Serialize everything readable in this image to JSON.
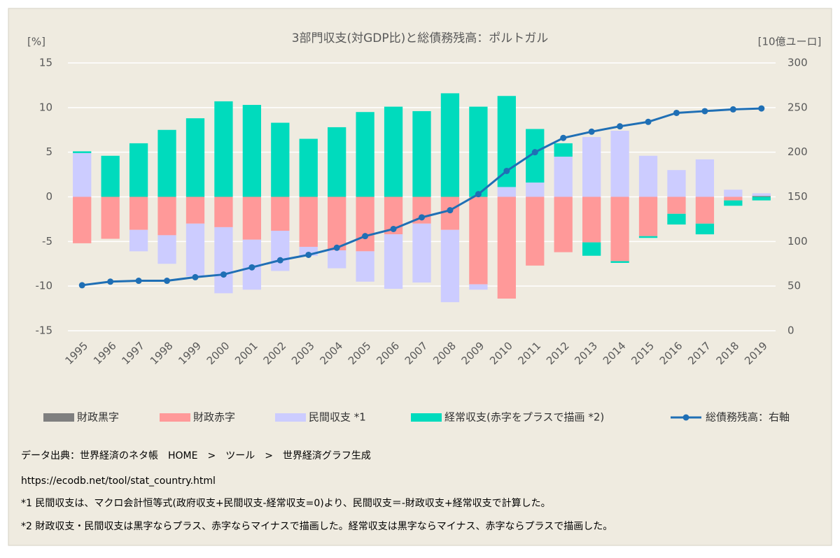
{
  "chart_data": {
    "type": "bar",
    "stacked": true,
    "title": "3部門収支(対GDP比)と総債務残高：ポルトガル",
    "y_label": "[%]",
    "y2_label": "[10億ユーロ]",
    "categories": [
      "1995",
      "1996",
      "1997",
      "1998",
      "1999",
      "2000",
      "2001",
      "2002",
      "2003",
      "2004",
      "2005",
      "2006",
      "2007",
      "2008",
      "2009",
      "2010",
      "2011",
      "2012",
      "2013",
      "2014",
      "2015",
      "2016",
      "2017",
      "2018",
      "2019"
    ],
    "series": [
      {
        "name": "財政黒字",
        "color": "#7f7f7f",
        "values": [
          null,
          null,
          null,
          null,
          null,
          null,
          null,
          null,
          null,
          null,
          null,
          null,
          null,
          null,
          null,
          null,
          null,
          null,
          null,
          null,
          null,
          null,
          null,
          null,
          0.1
        ]
      },
      {
        "name": "財政赤字",
        "color": "#ff9999",
        "values": [
          -5.2,
          -4.7,
          -3.7,
          -4.3,
          -3.0,
          -3.4,
          -4.8,
          -3.8,
          -5.6,
          -6.0,
          -6.1,
          -4.2,
          -3.0,
          -3.7,
          -9.8,
          -11.4,
          -7.7,
          -6.2,
          -5.1,
          -7.2,
          -4.4,
          -1.9,
          -3.0,
          -0.4,
          null
        ]
      },
      {
        "name": "民間収支 *1",
        "color": "#ccccff",
        "values": [
          4.9,
          0,
          -2.4,
          -3.2,
          -5.9,
          -7.4,
          -5.6,
          -4.5,
          -1.0,
          -2.0,
          -3.4,
          -6.1,
          -6.6,
          -8.1,
          -0.6,
          1.1,
          1.6,
          4.5,
          6.7,
          7.4,
          4.6,
          3.0,
          4.2,
          0.8,
          0.3
        ]
      },
      {
        "name": "経常収支(赤字をプラスで描画 *2)",
        "color": "#00dbbd",
        "values": [
          0.2,
          4.6,
          6.0,
          7.5,
          8.8,
          10.7,
          10.3,
          8.3,
          6.5,
          7.8,
          9.5,
          10.1,
          9.6,
          11.6,
          10.1,
          10.2,
          6.0,
          1.5,
          -1.5,
          -0.2,
          -0.2,
          -1.2,
          -1.2,
          -0.6,
          -0.4
        ]
      },
      {
        "name": "総債務残高：右軸",
        "color": "#1f6fb5",
        "type": "line",
        "axis": "y2",
        "values": [
          51,
          55,
          56,
          56,
          60,
          63,
          71,
          79,
          85,
          93,
          106,
          114,
          127,
          135,
          153,
          179,
          200,
          216,
          223,
          229,
          234,
          244,
          246,
          248,
          249
        ]
      }
    ],
    "ylim": [
      -15,
      15
    ],
    "yticks": [
      -15,
      -10,
      -5,
      0,
      5,
      10,
      15
    ],
    "y2lim": [
      0,
      300
    ],
    "y2ticks": [
      0,
      50,
      100,
      150,
      200,
      250,
      300
    ],
    "grid": true
  },
  "notes": [
    "データ出典：世界経済のネタ帳　HOME　>　ツール　>　世界経済グラフ生成",
    "https://ecodb.net/tool/stat_country.html",
    "*1 民間収支は、マクロ会計恒等式(政府収支+民間収支-経常収支=0)より、民間収支＝-財政収支+経常収支で計算した。",
    "*2 財政収支・民間収支は黒字ならプラス、赤字ならマイナスで描画した。経常収支は黒字ならマイナス、赤字ならプラスで描画した。"
  ]
}
